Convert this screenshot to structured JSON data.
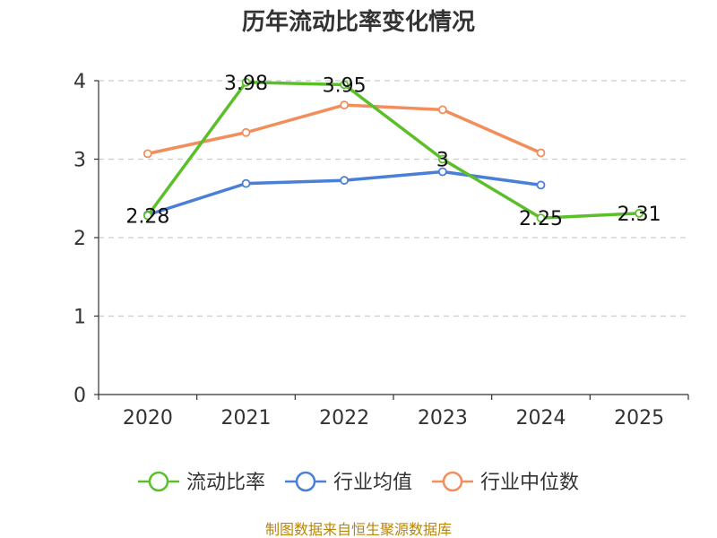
{
  "chart_data": {
    "type": "line",
    "title": "历年流动比率变化情况",
    "categories": [
      "2020",
      "2021",
      "2022",
      "2023",
      "2024",
      "2025"
    ],
    "ylim": [
      0,
      4
    ],
    "yticks": [
      0,
      1,
      2,
      3,
      4
    ],
    "grid": true,
    "legend_position": "bottom",
    "series": [
      {
        "name": "流动比率",
        "color": "#5bbf2a",
        "values": [
          2.28,
          3.98,
          3.95,
          3.0,
          2.25,
          2.31
        ],
        "data_labels": [
          "2.28",
          "3.98",
          "3.95",
          "3",
          "2.25",
          "2.31"
        ]
      },
      {
        "name": "行业均值",
        "color": "#4a7fd8",
        "values": [
          2.29,
          2.69,
          2.73,
          2.84,
          2.67,
          null
        ]
      },
      {
        "name": "行业中位数",
        "color": "#f28e5b",
        "values": [
          3.07,
          3.34,
          3.69,
          3.63,
          3.08,
          null
        ]
      }
    ],
    "source": "制图数据来自恒生聚源数据库"
  }
}
